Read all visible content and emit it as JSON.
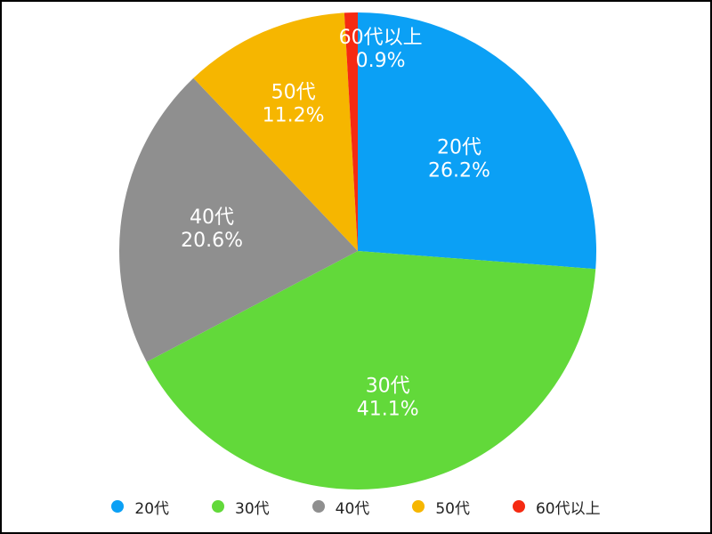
{
  "chart_data": {
    "type": "pie",
    "categories": [
      "20代",
      "30代",
      "40代",
      "50代",
      "60代以上"
    ],
    "values": [
      26.2,
      41.1,
      20.6,
      11.2,
      0.9
    ],
    "value_labels": [
      "26.2%",
      "41.1%",
      "20.6%",
      "11.2%",
      "0.9%"
    ],
    "colors": [
      "#0ba0f5",
      "#62d93a",
      "#8f8f8f",
      "#f6b600",
      "#f52a12"
    ],
    "start_angle": "12 o'clock",
    "direction": "clockwise",
    "legend_position": "bottom"
  },
  "legend": {
    "items": [
      {
        "label": "20代",
        "color": "#0ba0f5"
      },
      {
        "label": "30代",
        "color": "#62d93a"
      },
      {
        "label": "40代",
        "color": "#8f8f8f"
      },
      {
        "label": "50代",
        "color": "#f6b600"
      },
      {
        "label": "60代以上",
        "color": "#f52a12"
      }
    ]
  }
}
